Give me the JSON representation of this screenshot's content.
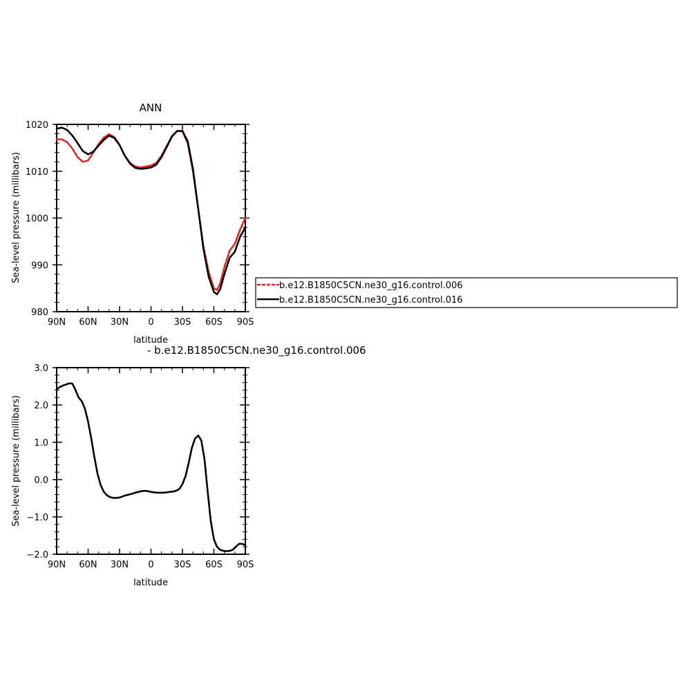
{
  "chart_data": [
    {
      "type": "line",
      "title": "ANN",
      "xlabel": "latitude",
      "ylabel": "Sea-level pressure (millibars)",
      "xlim": [
        90,
        -90
      ],
      "ylim": [
        980,
        1020
      ],
      "xticks": [
        90,
        60,
        30,
        0,
        -30,
        -60,
        -90
      ],
      "xtick_labels": [
        "90N",
        "60N",
        "30N",
        "0",
        "30S",
        "60S",
        "90S"
      ],
      "yticks": [
        980,
        990,
        1000,
        1010,
        1020
      ],
      "ytick_labels": [
        "980",
        "990",
        "1000",
        "1010",
        "1020"
      ],
      "grid": false,
      "legend": "right",
      "series": [
        {
          "name": "b.e12.B1850C5CN.ne30_g16.control.006",
          "color": "#e8201e",
          "dash": "dashed",
          "x": [
            90,
            85,
            80,
            75,
            70,
            65,
            60,
            55,
            50,
            45,
            40,
            35,
            30,
            25,
            20,
            15,
            10,
            5,
            0,
            -5,
            -10,
            -15,
            -20,
            -25,
            -30,
            -35,
            -40,
            -45,
            -50,
            -55,
            -60,
            -63,
            -66,
            -70,
            -75,
            -80,
            -85,
            -90
          ],
          "y": [
            1016.8,
            1016.8,
            1016.2,
            1014.8,
            1013.0,
            1012.0,
            1012.3,
            1014.0,
            1015.8,
            1017.2,
            1017.9,
            1017.3,
            1015.6,
            1013.3,
            1011.8,
            1011.0,
            1010.8,
            1011.0,
            1011.2,
            1011.8,
            1013.3,
            1015.4,
            1017.5,
            1018.6,
            1018.5,
            1016.0,
            1010.0,
            1002.0,
            994.0,
            988.5,
            985.0,
            984.6,
            986.0,
            989.5,
            993.0,
            994.5,
            997.5,
            1000.0
          ]
        },
        {
          "name": "b.e12.B1850C5CN.ne30_g16.control.016",
          "color": "#000000",
          "dash": "solid",
          "x": [
            90,
            85,
            80,
            75,
            70,
            65,
            60,
            55,
            50,
            45,
            40,
            35,
            30,
            25,
            20,
            15,
            10,
            5,
            0,
            -5,
            -10,
            -15,
            -20,
            -25,
            -30,
            -35,
            -40,
            -45,
            -50,
            -55,
            -60,
            -63,
            -66,
            -70,
            -75,
            -80,
            -85,
            -90
          ],
          "y": [
            1019.1,
            1019.3,
            1018.8,
            1017.6,
            1016.0,
            1014.3,
            1013.6,
            1014.2,
            1015.5,
            1016.7,
            1017.6,
            1017.1,
            1015.6,
            1013.3,
            1011.6,
            1010.7,
            1010.5,
            1010.6,
            1010.8,
            1011.4,
            1013.0,
            1015.2,
            1017.4,
            1018.6,
            1018.6,
            1016.4,
            1010.5,
            1002.0,
            993.5,
            987.5,
            984.2,
            983.7,
            984.8,
            988.0,
            991.5,
            992.8,
            996.0,
            998.0
          ]
        }
      ]
    },
    {
      "type": "line",
      "title": "- b.e12.B1850C5CN.ne30_g16.control.006",
      "xlabel": "latitude",
      "ylabel": "Sea-level pressure (millibars)",
      "xlim": [
        90,
        -90
      ],
      "ylim": [
        -2.0,
        3.0
      ],
      "xticks": [
        90,
        60,
        30,
        0,
        -30,
        -60,
        -90
      ],
      "xtick_labels": [
        "90N",
        "60N",
        "30N",
        "0",
        "30S",
        "60S",
        "90S"
      ],
      "yticks": [
        -2.0,
        -1.0,
        0.0,
        1.0,
        2.0,
        3.0
      ],
      "ytick_labels": [
        "−2.0",
        "−1.0",
        "0.0",
        "1.0",
        "2.0",
        "3.0"
      ],
      "grid": false,
      "series": [
        {
          "color": "#000000",
          "dash": "solid",
          "x": [
            90,
            87,
            84,
            81,
            78,
            75,
            72,
            69,
            66,
            63,
            60,
            57,
            54,
            51,
            48,
            45,
            42,
            39,
            36,
            33,
            30,
            27,
            24,
            21,
            18,
            15,
            12,
            9,
            6,
            3,
            0,
            -3,
            -6,
            -9,
            -12,
            -15,
            -18,
            -21,
            -24,
            -27,
            -30,
            -33,
            -36,
            -39,
            -42,
            -45,
            -48,
            -51,
            -54,
            -57,
            -60,
            -63,
            -66,
            -69,
            -72,
            -75,
            -78,
            -81,
            -84,
            -87,
            -90
          ],
          "y": [
            2.42,
            2.48,
            2.52,
            2.55,
            2.58,
            2.57,
            2.4,
            2.2,
            2.1,
            1.9,
            1.55,
            1.1,
            0.6,
            0.15,
            -0.15,
            -0.33,
            -0.42,
            -0.47,
            -0.49,
            -0.49,
            -0.48,
            -0.45,
            -0.42,
            -0.4,
            -0.38,
            -0.35,
            -0.33,
            -0.31,
            -0.3,
            -0.31,
            -0.33,
            -0.34,
            -0.35,
            -0.35,
            -0.35,
            -0.34,
            -0.33,
            -0.32,
            -0.3,
            -0.25,
            -0.12,
            0.1,
            0.45,
            0.85,
            1.1,
            1.18,
            1.05,
            0.55,
            -0.3,
            -1.1,
            -1.6,
            -1.8,
            -1.88,
            -1.91,
            -1.92,
            -1.91,
            -1.88,
            -1.8,
            -1.72,
            -1.72,
            -1.76
          ]
        }
      ]
    }
  ]
}
